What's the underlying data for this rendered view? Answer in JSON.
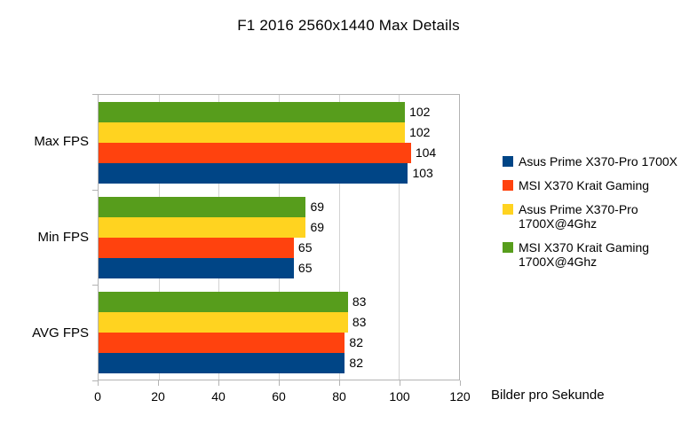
{
  "chart_data": {
    "type": "bar",
    "orientation": "horizontal",
    "title": "F1 2016 2560x1440 Max Details",
    "categories": [
      "Max FPS",
      "Min FPS",
      "AVG FPS"
    ],
    "series": [
      {
        "name": "Asus Prime X370-Pro 1700X",
        "color": "#004586",
        "values": [
          103,
          65,
          82
        ]
      },
      {
        "name": "MSI X370 Krait Gaming",
        "color": "#FF420E",
        "values": [
          104,
          65,
          82
        ]
      },
      {
        "name": "Asus Prime X370-Pro 1700X@4Ghz",
        "color": "#FFD320",
        "values": [
          102,
          69,
          83
        ]
      },
      {
        "name": "MSI X370 Krait Gaming 1700X@4Ghz",
        "color": "#579D1C",
        "values": [
          102,
          69,
          83
        ]
      }
    ],
    "xlabel": "Bilder pro Sekunde",
    "xlim": [
      0,
      120
    ],
    "xticks": [
      0,
      20,
      40,
      60,
      80,
      100,
      120
    ],
    "data_labels": true,
    "grid": "vertical",
    "legend_position": "right",
    "stacking_order": "first series at bottom of each group"
  },
  "colors": {
    "background": "#ffffff",
    "axis_line": "#b3b3b3",
    "gridline": "#d3d3d3",
    "text": "#000000"
  }
}
